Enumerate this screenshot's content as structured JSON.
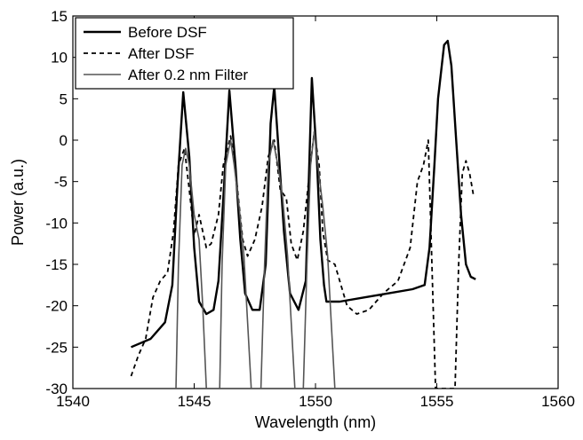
{
  "chart_data": {
    "type": "line",
    "xlabel": "Wavelength (nm)",
    "ylabel": "Power (a.u.)",
    "xlim": [
      1540,
      1560
    ],
    "ylim": [
      -30,
      15
    ],
    "x_ticks": [
      "1540",
      "1545",
      "1550",
      "1555",
      "1560"
    ],
    "y_ticks": [
      "15",
      "10",
      "5",
      "0",
      "-5",
      "-10",
      "-15",
      "-20",
      "-25",
      "-30"
    ],
    "grid": false,
    "legend_position": "top-left",
    "series": [
      {
        "name": "Before DSF",
        "style": "solid",
        "color": "#000000",
        "points": [
          [
            1542.4,
            -25
          ],
          [
            1543.2,
            -24
          ],
          [
            1543.8,
            -22
          ],
          [
            1544.1,
            -17.5
          ],
          [
            1544.3,
            -6
          ],
          [
            1544.55,
            5.8
          ],
          [
            1544.8,
            -2
          ],
          [
            1545.0,
            -13
          ],
          [
            1545.2,
            -19.5
          ],
          [
            1545.5,
            -21
          ],
          [
            1545.8,
            -20.5
          ],
          [
            1546.0,
            -17
          ],
          [
            1546.2,
            -7
          ],
          [
            1546.45,
            6
          ],
          [
            1546.7,
            -3
          ],
          [
            1546.9,
            -12
          ],
          [
            1547.1,
            -18.5
          ],
          [
            1547.4,
            -20.5
          ],
          [
            1547.7,
            -20.5
          ],
          [
            1547.95,
            -15
          ],
          [
            1548.15,
            2
          ],
          [
            1548.3,
            6.5
          ],
          [
            1548.5,
            -2
          ],
          [
            1548.7,
            -11
          ],
          [
            1548.95,
            -18.5
          ],
          [
            1549.3,
            -20.5
          ],
          [
            1549.6,
            -17
          ],
          [
            1549.85,
            7.5
          ],
          [
            1550.05,
            -2
          ],
          [
            1550.2,
            -12
          ],
          [
            1550.35,
            -17.5
          ],
          [
            1550.45,
            -19.5
          ],
          [
            1551.0,
            -19.5
          ],
          [
            1552.0,
            -19
          ],
          [
            1553.0,
            -18.5
          ],
          [
            1554.0,
            -18
          ],
          [
            1554.5,
            -17.5
          ],
          [
            1554.7,
            -13
          ],
          [
            1554.9,
            -3
          ],
          [
            1555.05,
            5
          ],
          [
            1555.3,
            11.5
          ],
          [
            1555.45,
            12
          ],
          [
            1555.6,
            9
          ],
          [
            1555.8,
            0
          ],
          [
            1556.0,
            -9
          ],
          [
            1556.2,
            -15
          ],
          [
            1556.4,
            -16.5
          ],
          [
            1556.6,
            -16.8
          ]
        ]
      },
      {
        "name": "After DSF",
        "style": "dashed",
        "color": "#000000",
        "points": [
          [
            1542.4,
            -28.5
          ],
          [
            1542.7,
            -26
          ],
          [
            1543.0,
            -24
          ],
          [
            1543.3,
            -19
          ],
          [
            1543.6,
            -17
          ],
          [
            1543.9,
            -16
          ],
          [
            1544.15,
            -11
          ],
          [
            1544.35,
            -3
          ],
          [
            1544.6,
            -1
          ],
          [
            1544.8,
            -6
          ],
          [
            1545.0,
            -11.5
          ],
          [
            1545.2,
            -9
          ],
          [
            1545.35,
            -11
          ],
          [
            1545.5,
            -13
          ],
          [
            1545.7,
            -12.5
          ],
          [
            1546.0,
            -9
          ],
          [
            1546.2,
            -3
          ],
          [
            1546.5,
            0.5
          ],
          [
            1546.75,
            -5
          ],
          [
            1547.0,
            -12
          ],
          [
            1547.2,
            -14
          ],
          [
            1547.5,
            -12
          ],
          [
            1547.8,
            -8
          ],
          [
            1548.05,
            -2
          ],
          [
            1548.3,
            0
          ],
          [
            1548.55,
            -6
          ],
          [
            1548.8,
            -7
          ],
          [
            1549.0,
            -12.5
          ],
          [
            1549.25,
            -14.5
          ],
          [
            1549.5,
            -11
          ],
          [
            1549.75,
            -4
          ],
          [
            1549.95,
            1
          ],
          [
            1550.15,
            -3
          ],
          [
            1550.3,
            -11
          ],
          [
            1550.5,
            -14.5
          ],
          [
            1550.8,
            -15
          ],
          [
            1551.3,
            -20
          ],
          [
            1551.7,
            -21
          ],
          [
            1552.2,
            -20.5
          ],
          [
            1552.8,
            -18.5
          ],
          [
            1553.4,
            -17
          ],
          [
            1553.9,
            -13
          ],
          [
            1554.2,
            -5
          ],
          [
            1554.45,
            -3
          ],
          [
            1554.65,
            0
          ],
          [
            1554.8,
            -15
          ],
          [
            1554.95,
            -30
          ],
          [
            1555.75,
            -30
          ],
          [
            1555.9,
            -15
          ],
          [
            1556.05,
            -4
          ],
          [
            1556.2,
            -2.5
          ],
          [
            1556.35,
            -4
          ],
          [
            1556.5,
            -6.5
          ]
        ]
      },
      {
        "name": "After 0.2 nm Filter",
        "style": "solid",
        "color": "#555555",
        "points_groups": [
          [
            [
              1544.25,
              -30
            ],
            [
              1544.35,
              -15
            ],
            [
              1544.5,
              -3
            ],
            [
              1544.65,
              -1
            ],
            [
              1544.8,
              -3
            ],
            [
              1545.0,
              -9
            ],
            [
              1545.2,
              -12
            ],
            [
              1545.35,
              -20
            ],
            [
              1545.5,
              -30
            ]
          ],
          [
            [
              1546.05,
              -30
            ],
            [
              1546.15,
              -15
            ],
            [
              1546.3,
              -3
            ],
            [
              1546.5,
              0
            ],
            [
              1546.65,
              -3
            ],
            [
              1546.85,
              -8
            ],
            [
              1547.05,
              -14
            ],
            [
              1547.2,
              -22
            ],
            [
              1547.35,
              -30
            ]
          ],
          [
            [
              1547.75,
              -30
            ],
            [
              1547.9,
              -15
            ],
            [
              1548.05,
              -3
            ],
            [
              1548.25,
              0
            ],
            [
              1548.45,
              -3
            ],
            [
              1548.65,
              -7
            ],
            [
              1548.85,
              -14
            ],
            [
              1549.0,
              -22
            ],
            [
              1549.15,
              -30
            ]
          ],
          [
            [
              1549.5,
              -30
            ],
            [
              1549.65,
              -15
            ],
            [
              1549.8,
              -3
            ],
            [
              1549.95,
              1
            ],
            [
              1550.1,
              -3
            ],
            [
              1550.3,
              -8
            ],
            [
              1550.5,
              -14
            ],
            [
              1550.65,
              -22
            ],
            [
              1550.8,
              -30
            ]
          ]
        ]
      }
    ]
  }
}
